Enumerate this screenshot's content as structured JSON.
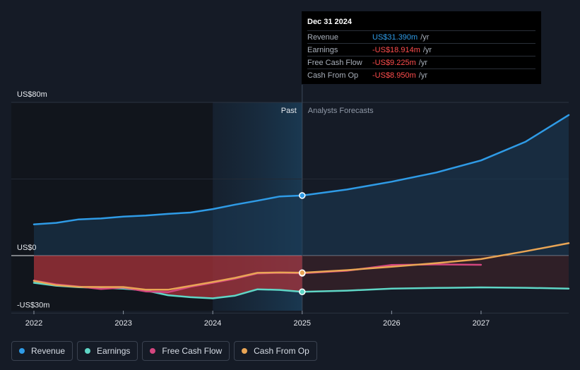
{
  "chart_data": {
    "type": "area",
    "title": "",
    "xlabel": "",
    "ylabel": "",
    "x_ticks": [
      "2022",
      "2023",
      "2024",
      "2025",
      "2026",
      "2027"
    ],
    "y_ticks": [
      {
        "value": 80,
        "label": "US$80m"
      },
      {
        "value": 0,
        "label": "US$0"
      },
      {
        "value": -30,
        "label": "-US$30m"
      }
    ],
    "xlim": [
      2021.78,
      2027.98
    ],
    "ylim": [
      -30,
      80
    ],
    "past_label": "Past",
    "forecast_label": "Analysts Forecasts",
    "divider_x": 2025.0,
    "series": [
      {
        "name": "Revenue",
        "color": "#2f9be6",
        "x": [
          2022.0,
          2022.25,
          2022.5,
          2022.75,
          2023.0,
          2023.25,
          2023.5,
          2023.75,
          2024.0,
          2024.25,
          2024.5,
          2024.75,
          2025.0,
          2025.5,
          2026.0,
          2026.5,
          2027.0,
          2027.5,
          2027.98
        ],
        "y": [
          16.3,
          17.1,
          18.9,
          19.4,
          20.4,
          20.9,
          21.8,
          22.5,
          24.3,
          26.6,
          28.7,
          30.9,
          31.39,
          34.5,
          38.6,
          43.4,
          49.7,
          59.5,
          73.4
        ]
      },
      {
        "name": "Earnings",
        "color": "#5fd6c6",
        "x": [
          2022.0,
          2022.25,
          2022.5,
          2022.75,
          2023.0,
          2023.25,
          2023.5,
          2023.75,
          2024.0,
          2024.25,
          2024.5,
          2024.75,
          2025.0,
          2025.5,
          2026.0,
          2026.5,
          2027.0,
          2027.5,
          2027.98
        ],
        "y": [
          -14.2,
          -15.7,
          -16.5,
          -16.8,
          -17.2,
          -18.2,
          -20.7,
          -21.7,
          -22.3,
          -20.9,
          -17.6,
          -17.9,
          -18.914,
          -18.3,
          -17.2,
          -16.9,
          -16.6,
          -16.8,
          -17.2
        ]
      },
      {
        "name": "Free Cash Flow",
        "color": "#d3467f",
        "x": [
          2022.0,
          2022.25,
          2022.5,
          2022.75,
          2023.0,
          2023.25,
          2023.5,
          2023.75,
          2024.0,
          2024.25,
          2024.5,
          2024.75,
          2025.0,
          2025.5,
          2026.0,
          2026.5,
          2027.0
        ],
        "y": [
          -13.0,
          -15.0,
          -16.2,
          -17.4,
          -16.7,
          -18.7,
          -19.1,
          -16.3,
          -14.2,
          -12.0,
          -9.3,
          -9.0,
          -9.225,
          -7.9,
          -4.9,
          -4.6,
          -4.8
        ]
      },
      {
        "name": "Cash From Op",
        "color": "#e9a555",
        "x": [
          2022.0,
          2022.25,
          2022.5,
          2022.75,
          2023.0,
          2023.25,
          2023.5,
          2023.75,
          2024.0,
          2024.25,
          2024.5,
          2024.75,
          2025.0,
          2025.5,
          2026.0,
          2026.5,
          2027.0,
          2027.5,
          2027.98
        ],
        "y": [
          -13.2,
          -15.4,
          -16.3,
          -16.4,
          -16.4,
          -17.8,
          -17.8,
          -15.8,
          -13.8,
          -11.6,
          -9.0,
          -8.8,
          -8.95,
          -7.6,
          -5.8,
          -3.9,
          -1.8,
          2.3,
          6.5
        ]
      }
    ],
    "highlight": {
      "x": 2025.0,
      "date_label": "Dec 31 2024",
      "rows": [
        {
          "label": "Revenue",
          "value": "US$31.390m",
          "unit": "/yr",
          "color": "#2f9be6"
        },
        {
          "label": "Earnings",
          "value": "-US$18.914m",
          "unit": "/yr",
          "color": "#ff4d4d"
        },
        {
          "label": "Free Cash Flow",
          "value": "-US$9.225m",
          "unit": "/yr",
          "color": "#ff4d4d"
        },
        {
          "label": "Cash From Op",
          "value": "-US$8.950m",
          "unit": "/yr",
          "color": "#ff4d4d"
        }
      ]
    }
  },
  "legend": [
    {
      "label": "Revenue",
      "color": "#2f9be6"
    },
    {
      "label": "Earnings",
      "color": "#5fd6c6"
    },
    {
      "label": "Free Cash Flow",
      "color": "#d3467f"
    },
    {
      "label": "Cash From Op",
      "color": "#e9a555"
    }
  ]
}
